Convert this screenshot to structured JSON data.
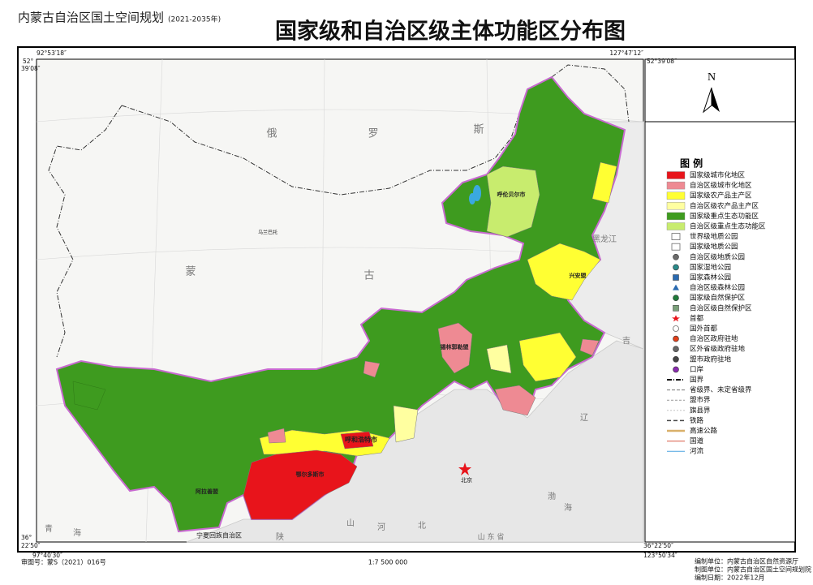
{
  "header": {
    "plan": "内蒙古自治区国土空间规划",
    "period": "(2021-2035年)",
    "title": "国家级和自治区级主体功能区分布图"
  },
  "coordinates": {
    "top_left_lon": "92°53′18″",
    "top_right_lon": "127°47′12″",
    "top_left_lat_deg": "52°",
    "top_left_lat_min": "39′08″",
    "top_right_lat": "52°39′08″",
    "bottom_left_lat_deg": "36°",
    "bottom_left_lat_min": "22′50″",
    "bottom_left_lon": "97°40′30″",
    "bottom_right_lat": "36°22′50″",
    "bottom_right_lon": "123°50′34″"
  },
  "north": "N",
  "legend": {
    "title": "图 例",
    "items": [
      "国家级城市化地区",
      "自治区级城市化地区",
      "国家级农产品主产区",
      "自治区级农产品主产区",
      "国家级重点生态功能区",
      "自治区级重点生态功能区",
      "世界级地质公园",
      "国家级地质公园",
      "自治区级地质公园",
      "国家湿地公园",
      "国家森林公园",
      "自治区级森林公园",
      "国家级自然保护区",
      "自治区级自然保护区",
      "首都",
      "国外首都",
      "自治区政府驻地",
      "区外省级政府驻地",
      "盟市政府驻地",
      "口岸",
      "国界",
      "省级界、未定省级界",
      "盟市界",
      "旗县界",
      "铁路",
      "高速公路",
      "国道",
      "河流"
    ]
  },
  "map_labels": [
    "俄",
    "罗",
    "斯",
    "蒙",
    "古",
    "黑龙江",
    "吉",
    "辽",
    "河",
    "北",
    "山",
    "宁夏回族自治区",
    "陕",
    "青",
    "海",
    "渤",
    "海",
    "呼伦贝尔市",
    "兴安盟",
    "锡林郭勒盟",
    "呼和浩特市",
    "鄂尔多斯市",
    "阿拉善盟",
    "乌兰巴托",
    "山 东 省",
    "北京"
  ],
  "footer": {
    "approval": "审图号：蒙S（2021）016号",
    "scale": "1:7 500 000",
    "compiler": "编制单位：内蒙古自治区自然资源厅",
    "cartographer": "制图单位：内蒙古自治区国土空间规划院",
    "date": "编制日期：2022年12月"
  }
}
